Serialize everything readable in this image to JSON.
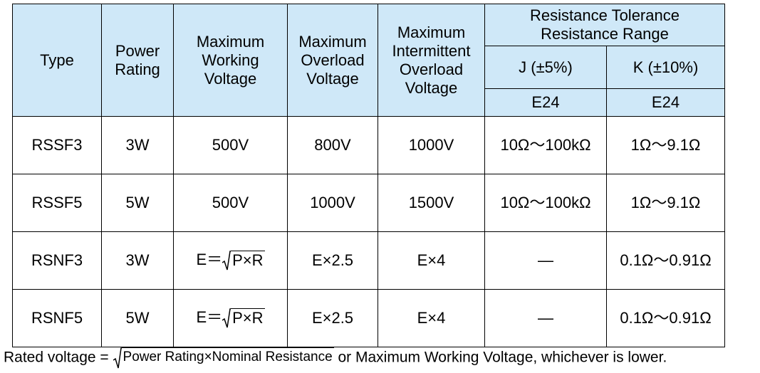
{
  "headers": {
    "type": "Type",
    "power_rating": [
      "Power",
      "Rating"
    ],
    "max_working_voltage": [
      "Maximum",
      "Working",
      "Voltage"
    ],
    "max_overload_voltage": [
      "Maximum",
      "Overload",
      "Voltage"
    ],
    "max_intermittent_overload_voltage": [
      "Maximum",
      "Intermittent",
      "Overload",
      "Voltage"
    ],
    "tolerance_group": [
      "Resistance Tolerance",
      "Resistance Range"
    ],
    "tol_j": "J (±5%)",
    "tol_k": "K (±10%)",
    "series_j": "E24",
    "series_k": "E24"
  },
  "formula": {
    "prefix": "E＝",
    "radicand": "P×R"
  },
  "rows": [
    {
      "type": "RSSF3",
      "power": "3W",
      "working": "500V",
      "overload": "800V",
      "intermittent": "1000V",
      "range_j": "10Ω～100kΩ",
      "range_k": "1Ω～9.1Ω"
    },
    {
      "type": "RSSF5",
      "power": "5W",
      "working": "500V",
      "overload": "1000V",
      "intermittent": "1500V",
      "range_j": "10Ω～100kΩ",
      "range_k": "1Ω～9.1Ω"
    },
    {
      "type": "RSNF3",
      "power": "3W",
      "working": "",
      "overload": "E×2.5",
      "intermittent": "E×4",
      "range_j": "—",
      "range_k": "0.1Ω～0.91Ω"
    },
    {
      "type": "RSNF5",
      "power": "5W",
      "working": "",
      "overload": "E×2.5",
      "intermittent": "E×4",
      "range_j": "—",
      "range_k": "0.1Ω～0.91Ω"
    }
  ],
  "footnote": {
    "prefix": "Rated voltage = ",
    "radicand": "Power Rating×Nominal Resistance",
    "suffix": " or Maximum Working Voltage, whichever is lower."
  }
}
